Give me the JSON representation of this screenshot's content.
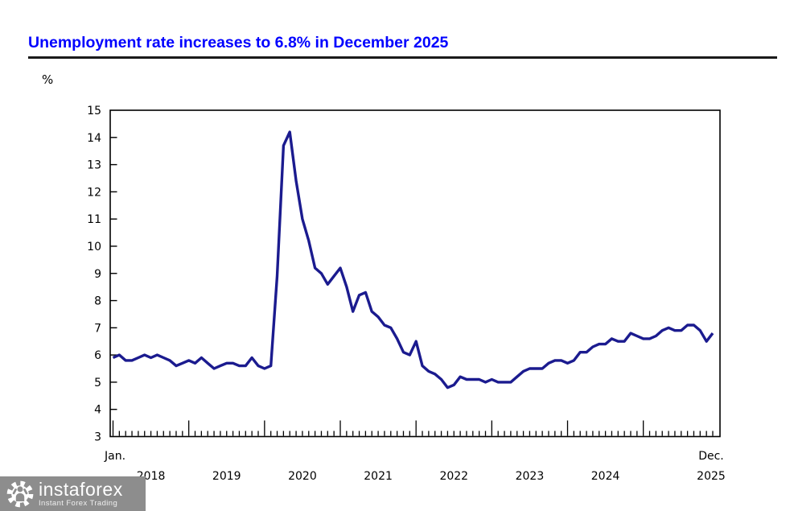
{
  "page": {
    "title": "Unemployment rate increases to 6.8% in December 2025",
    "title_color": "#0000ff"
  },
  "chart_data": {
    "type": "line",
    "title": "Unemployment rate increases to 6.8% in December 2025",
    "unit_label": "%",
    "x": "Monthly, January 2018 to December 2025",
    "x_first_month_label": "Jan.",
    "x_last_month_label": "Dec.",
    "x_year_labels": [
      "2018",
      "2019",
      "2020",
      "2021",
      "2022",
      "2023",
      "2024",
      "2025"
    ],
    "ylim": [
      3,
      15
    ],
    "yticks": [
      3,
      4,
      5,
      6,
      7,
      8,
      9,
      10,
      11,
      12,
      13,
      14,
      15
    ],
    "grid": false,
    "legend_position": "none",
    "line_color": "#1b1b8f",
    "months_per_tick": 1,
    "series": [
      {
        "name": "Unemployment rate (%)",
        "color": "#1b1b8f",
        "values": [
          5.9,
          6.0,
          5.8,
          5.8,
          5.9,
          6.0,
          5.9,
          6.0,
          5.9,
          5.8,
          5.6,
          5.7,
          5.8,
          5.7,
          5.9,
          5.7,
          5.5,
          5.6,
          5.7,
          5.7,
          5.6,
          5.6,
          5.9,
          5.6,
          5.5,
          5.6,
          8.9,
          13.7,
          14.2,
          12.4,
          11.0,
          10.2,
          9.2,
          9.0,
          8.6,
          8.9,
          9.2,
          8.5,
          7.6,
          8.2,
          8.3,
          7.6,
          7.4,
          7.1,
          7.0,
          6.6,
          6.1,
          6.0,
          6.5,
          5.6,
          5.4,
          5.3,
          5.1,
          4.8,
          4.9,
          5.2,
          5.1,
          5.1,
          5.1,
          5.0,
          5.1,
          5.0,
          5.0,
          5.0,
          5.2,
          5.4,
          5.5,
          5.5,
          5.5,
          5.7,
          5.8,
          5.8,
          5.7,
          5.8,
          6.1,
          6.1,
          6.3,
          6.4,
          6.4,
          6.6,
          6.5,
          6.5,
          6.8,
          6.7,
          6.6,
          6.6,
          6.7,
          6.9,
          7.0,
          6.9,
          6.9,
          7.1,
          7.1,
          6.9,
          6.5,
          6.8
        ]
      }
    ]
  },
  "logo": {
    "brand": "instaforex",
    "tagline": "Instant Forex Trading",
    "bg_color": "#8d8d8d",
    "text_color": "#ffffff"
  }
}
